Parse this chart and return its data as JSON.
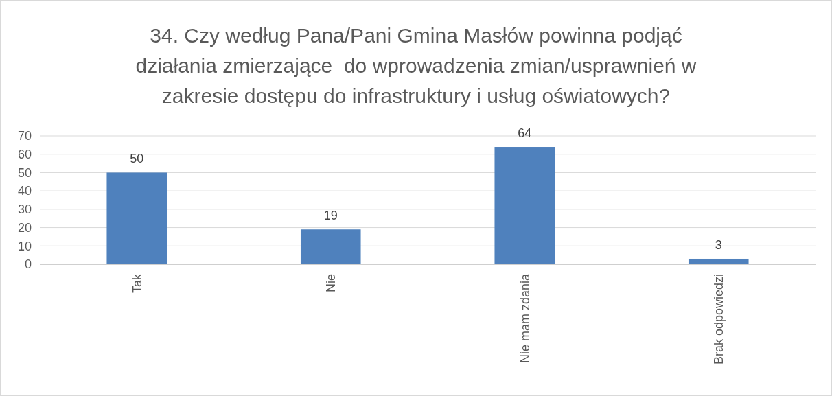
{
  "chart_data": {
    "type": "bar",
    "title": "34. Czy według Pana/Pani Gmina Masłów powinna podjąć\ndziałania zmierzające  do wprowadzenia zmian/usprawnień w\nzakresie dostępu do infrastruktury i usług oświatowych?",
    "categories": [
      "Tak",
      "Nie",
      "Nie mam zdania",
      "Brak odpowiedzi"
    ],
    "values": [
      50,
      19,
      64,
      3
    ],
    "color": "#4f81bd",
    "ylim": [
      0,
      70
    ],
    "yticks": [
      0,
      10,
      20,
      30,
      40,
      50,
      60,
      70
    ],
    "grid": "y",
    "data_labels": true
  }
}
